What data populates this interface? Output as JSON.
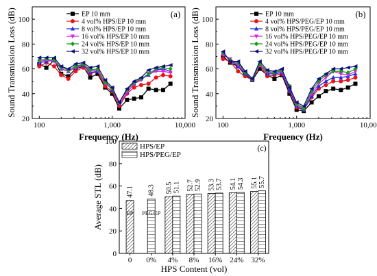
{
  "chart_data": [
    {
      "type": "line",
      "panel_label": "(a)",
      "xlabel": "Frequency (Hz)",
      "ylabel": "Sound Transmission Loss (dB)",
      "xscale": "log",
      "xlim": [
        80,
        10000
      ],
      "ylim": [
        20,
        110
      ],
      "xticks": [
        100,
        1000,
        10000
      ],
      "xtick_labels": [
        "100",
        "1,000",
        "10,000"
      ],
      "yticks": [
        20,
        40,
        60,
        80,
        100
      ],
      "legend_position": "top-right",
      "x": [
        100,
        125,
        160,
        200,
        250,
        315,
        400,
        500,
        630,
        800,
        1000,
        1250,
        1600,
        2000,
        2500,
        3150,
        4000,
        5000,
        6300
      ],
      "series": [
        {
          "name": "EP 10 mm",
          "color": "#000000",
          "marker": "square",
          "values": [
            64,
            61,
            67,
            56,
            54,
            60,
            62,
            53,
            56,
            45,
            40,
            28,
            35,
            36,
            37,
            44,
            43,
            43,
            48
          ]
        },
        {
          "name": "4 vol% HPS/EP   10 mm",
          "color": "#e8141b",
          "marker": "circle",
          "values": [
            62,
            65,
            62,
            55,
            52,
            58,
            61,
            56,
            58,
            46,
            42,
            30,
            40,
            45,
            47,
            48,
            53,
            55,
            54
          ]
        },
        {
          "name": "8 vol% HPS/EP   10 mm",
          "color": "#1f2ee0",
          "marker": "triangle",
          "values": [
            65,
            66,
            67,
            60,
            58,
            61,
            63,
            57,
            58,
            50,
            43,
            32,
            41,
            48,
            52,
            55,
            59,
            60,
            58
          ]
        },
        {
          "name": "16 vol% HPS/EP   10 mm",
          "color": "#e01ee8",
          "marker": "triangle-down",
          "values": [
            66,
            67,
            66,
            60,
            58,
            61,
            64,
            58,
            59,
            48,
            44,
            32,
            41,
            48,
            51,
            56,
            58,
            58,
            57
          ]
        },
        {
          "name": "24 vol% HPS/EP   10 mm",
          "color": "#1a9a1a",
          "marker": "diamond",
          "values": [
            67,
            68,
            67,
            61,
            59,
            62,
            64,
            59,
            60,
            49,
            44,
            33,
            43,
            49,
            52,
            56,
            60,
            61,
            60
          ]
        },
        {
          "name": "32 vol% HPS/EP   10 mm",
          "color": "#10107a",
          "marker": "triangle-left",
          "values": [
            69,
            69,
            69,
            62,
            60,
            64,
            65,
            61,
            62,
            51,
            45,
            33,
            44,
            50,
            53,
            59,
            61,
            62,
            63
          ]
        }
      ]
    },
    {
      "type": "line",
      "panel_label": "(b)",
      "xlabel": "Frequency (Hz)",
      "ylabel": "Sound Transmission Loss (dB)",
      "xscale": "log",
      "xlim": [
        80,
        10000
      ],
      "ylim": [
        20,
        110
      ],
      "xticks": [
        100,
        1000,
        10000
      ],
      "xtick_labels": [
        "100",
        "1,000",
        "10,000"
      ],
      "yticks": [
        20,
        40,
        60,
        80,
        100
      ],
      "legend_position": "top-right",
      "x": [
        100,
        125,
        160,
        200,
        250,
        315,
        400,
        500,
        630,
        800,
        1000,
        1250,
        1600,
        2000,
        2500,
        3150,
        4000,
        5000,
        6300
      ],
      "series": [
        {
          "name": "EP 10 mm",
          "color": "#000000",
          "marker": "square",
          "values": [
            70,
            65,
            62,
            55,
            51,
            60,
            55,
            52,
            55,
            40,
            27,
            26,
            33,
            38,
            42,
            44,
            43,
            45,
            48
          ]
        },
        {
          "name": "4 vol% HPS/PEG/EP  10 mm",
          "color": "#e8141b",
          "marker": "circle",
          "values": [
            68,
            66,
            58,
            54,
            51,
            63,
            54,
            55,
            56,
            42,
            29,
            27,
            37,
            44,
            47,
            50,
            50,
            51,
            53
          ]
        },
        {
          "name": "8 vol% HPS/PEG/EP  10 mm",
          "color": "#1f2ee0",
          "marker": "triangle",
          "values": [
            72,
            67,
            62,
            56,
            51,
            64,
            56,
            56,
            57,
            43,
            30,
            27,
            38,
            46,
            50,
            53,
            53,
            54,
            56
          ]
        },
        {
          "name": "16 vol% HPS/PEG/EP  10 mm",
          "color": "#e01ee8",
          "marker": "triangle-down",
          "values": [
            71,
            68,
            63,
            57,
            52,
            63,
            57,
            57,
            58,
            46,
            31,
            28,
            40,
            48,
            53,
            58,
            56,
            55,
            58
          ]
        },
        {
          "name": "24 vol% HPS/PEG/EP  10 mm",
          "color": "#1a9a1a",
          "marker": "diamond",
          "values": [
            73,
            67,
            65,
            57,
            52,
            64,
            58,
            57,
            59,
            46,
            32,
            28,
            42,
            50,
            55,
            58,
            58,
            57,
            60
          ]
        },
        {
          "name": "32 vol% HPS/PEG/EP  10 mm",
          "color": "#10107a",
          "marker": "triangle-left",
          "values": [
            74,
            66,
            66,
            58,
            52,
            66,
            59,
            58,
            60,
            45,
            33,
            30,
            44,
            52,
            56,
            60,
            60,
            61,
            62
          ]
        }
      ]
    },
    {
      "type": "bar",
      "panel_label": "(c)",
      "xlabel": "HPS Content (vol)",
      "ylabel": "Average STL (dB)",
      "ylim": [
        0,
        100
      ],
      "yticks": [
        0,
        20,
        40,
        60,
        80,
        100
      ],
      "legend_position": "top-left",
      "categories": [
        "0",
        "0%",
        "4%",
        "8%",
        "16%",
        "24%",
        "32%"
      ],
      "inside_labels": [
        "EP",
        "PEG/EP",
        "",
        "",
        "",
        "",
        ""
      ],
      "series": [
        {
          "name": "HPS/EP",
          "values": [
            47.1,
            null,
            50.5,
            52.7,
            53.3,
            54.1,
            55.1
          ]
        },
        {
          "name": "HPS/PEG/EP",
          "values": [
            null,
            48.3,
            51.1,
            52.9,
            53.7,
            54.3,
            55.7
          ]
        }
      ],
      "data_labels": [
        [
          "47.1",
          "",
          "50.5",
          "52.7",
          "53.3",
          "54.1",
          "55.1"
        ],
        [
          "",
          "48.3",
          "51.1",
          "52.9",
          "53.7",
          "54.3",
          "55.7"
        ]
      ]
    }
  ]
}
